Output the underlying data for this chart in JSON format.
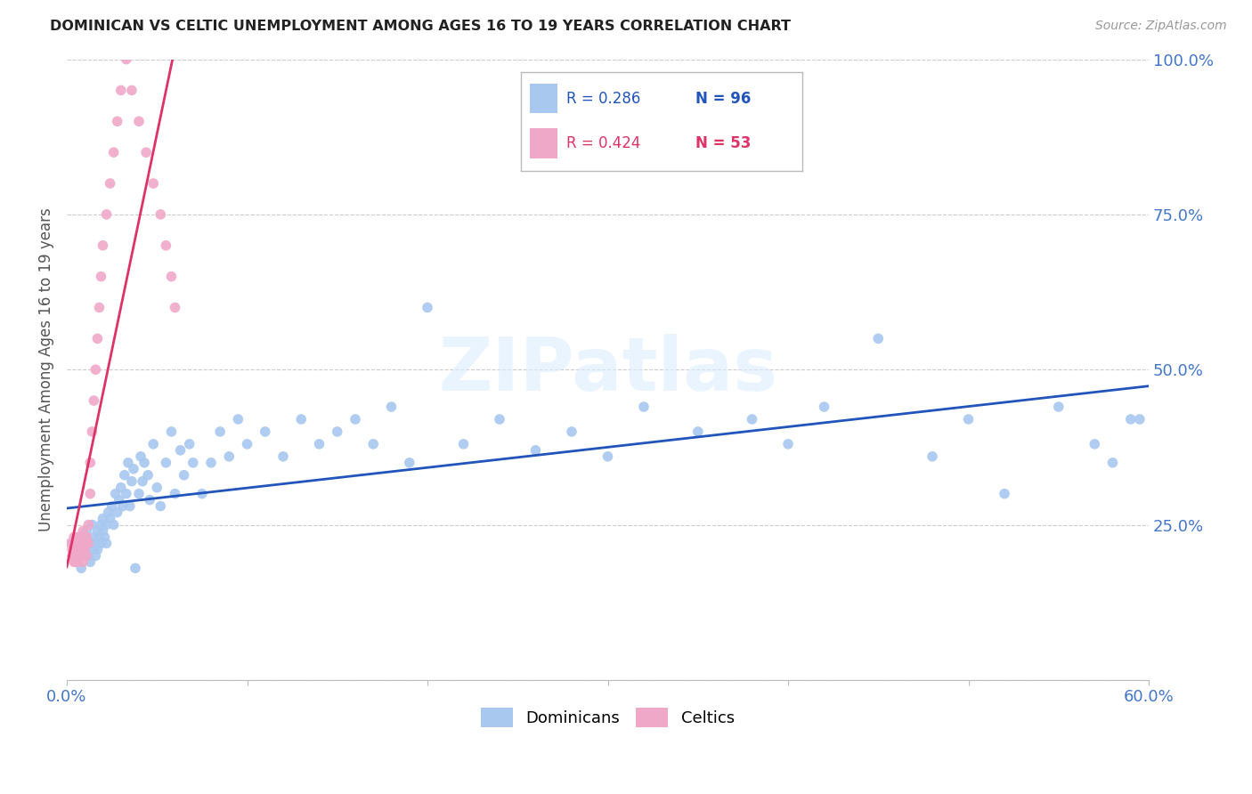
{
  "title": "DOMINICAN VS CELTIC UNEMPLOYMENT AMONG AGES 16 TO 19 YEARS CORRELATION CHART",
  "source": "Source: ZipAtlas.com",
  "ylabel": "Unemployment Among Ages 16 to 19 years",
  "xlim": [
    0.0,
    0.6
  ],
  "ylim": [
    0.0,
    1.0
  ],
  "xticks": [
    0.0,
    0.1,
    0.2,
    0.3,
    0.4,
    0.5,
    0.6
  ],
  "xticklabels": [
    "0.0%",
    "",
    "",
    "",
    "",
    "",
    "60.0%"
  ],
  "yticks": [
    0.0,
    0.25,
    0.5,
    0.75,
    1.0
  ],
  "yticklabels": [
    "",
    "25.0%",
    "50.0%",
    "75.0%",
    "100.0%"
  ],
  "dominican_color": "#a8c8f0",
  "celtic_color": "#f0a8c8",
  "trend_blue": "#2255bb",
  "trend_pink": "#dd3366",
  "watermark": "ZIPatlas",
  "legend_r_dominican": "R = 0.286",
  "legend_n_dominican": "N = 96",
  "legend_r_celtic": "R = 0.424",
  "legend_n_celtic": "N = 53",
  "dominican_x": [
    0.003,
    0.004,
    0.005,
    0.006,
    0.007,
    0.008,
    0.009,
    0.009,
    0.01,
    0.01,
    0.011,
    0.012,
    0.013,
    0.013,
    0.014,
    0.015,
    0.015,
    0.016,
    0.016,
    0.017,
    0.017,
    0.018,
    0.019,
    0.019,
    0.02,
    0.02,
    0.021,
    0.022,
    0.022,
    0.023,
    0.024,
    0.025,
    0.026,
    0.027,
    0.028,
    0.029,
    0.03,
    0.031,
    0.032,
    0.033,
    0.034,
    0.035,
    0.036,
    0.037,
    0.038,
    0.04,
    0.041,
    0.042,
    0.043,
    0.045,
    0.046,
    0.048,
    0.05,
    0.052,
    0.055,
    0.058,
    0.06,
    0.063,
    0.065,
    0.068,
    0.07,
    0.075,
    0.08,
    0.085,
    0.09,
    0.095,
    0.1,
    0.11,
    0.12,
    0.13,
    0.14,
    0.15,
    0.16,
    0.17,
    0.18,
    0.19,
    0.2,
    0.22,
    0.24,
    0.26,
    0.28,
    0.3,
    0.32,
    0.35,
    0.38,
    0.4,
    0.42,
    0.45,
    0.48,
    0.5,
    0.52,
    0.55,
    0.57,
    0.58,
    0.59,
    0.595
  ],
  "dominican_y": [
    0.22,
    0.2,
    0.19,
    0.21,
    0.23,
    0.18,
    0.2,
    0.22,
    0.21,
    0.23,
    0.24,
    0.2,
    0.22,
    0.19,
    0.25,
    0.21,
    0.23,
    0.22,
    0.2,
    0.24,
    0.21,
    0.23,
    0.25,
    0.22,
    0.24,
    0.26,
    0.23,
    0.25,
    0.22,
    0.27,
    0.26,
    0.28,
    0.25,
    0.3,
    0.27,
    0.29,
    0.31,
    0.28,
    0.33,
    0.3,
    0.35,
    0.28,
    0.32,
    0.34,
    0.18,
    0.3,
    0.36,
    0.32,
    0.35,
    0.33,
    0.29,
    0.38,
    0.31,
    0.28,
    0.35,
    0.4,
    0.3,
    0.37,
    0.33,
    0.38,
    0.35,
    0.3,
    0.35,
    0.4,
    0.36,
    0.42,
    0.38,
    0.4,
    0.36,
    0.42,
    0.38,
    0.4,
    0.42,
    0.38,
    0.44,
    0.35,
    0.6,
    0.38,
    0.42,
    0.37,
    0.4,
    0.36,
    0.44,
    0.4,
    0.42,
    0.38,
    0.44,
    0.55,
    0.36,
    0.42,
    0.3,
    0.44,
    0.38,
    0.35,
    0.42,
    0.42
  ],
  "celtic_x": [
    0.002,
    0.003,
    0.003,
    0.004,
    0.004,
    0.004,
    0.005,
    0.005,
    0.005,
    0.005,
    0.006,
    0.006,
    0.006,
    0.006,
    0.007,
    0.007,
    0.007,
    0.007,
    0.008,
    0.008,
    0.008,
    0.009,
    0.009,
    0.009,
    0.01,
    0.01,
    0.011,
    0.011,
    0.012,
    0.012,
    0.013,
    0.013,
    0.014,
    0.015,
    0.016,
    0.017,
    0.018,
    0.019,
    0.02,
    0.022,
    0.024,
    0.026,
    0.028,
    0.03,
    0.033,
    0.036,
    0.04,
    0.044,
    0.048,
    0.052,
    0.055,
    0.058,
    0.06
  ],
  "celtic_y": [
    0.22,
    0.21,
    0.2,
    0.19,
    0.21,
    0.23,
    0.2,
    0.22,
    0.19,
    0.21,
    0.22,
    0.2,
    0.23,
    0.19,
    0.21,
    0.23,
    0.2,
    0.22,
    0.21,
    0.23,
    0.2,
    0.22,
    0.19,
    0.24,
    0.22,
    0.21,
    0.23,
    0.2,
    0.25,
    0.22,
    0.3,
    0.35,
    0.4,
    0.45,
    0.5,
    0.55,
    0.6,
    0.65,
    0.7,
    0.75,
    0.8,
    0.85,
    0.9,
    0.95,
    1.0,
    0.95,
    0.9,
    0.85,
    0.8,
    0.75,
    0.7,
    0.65,
    0.6
  ]
}
